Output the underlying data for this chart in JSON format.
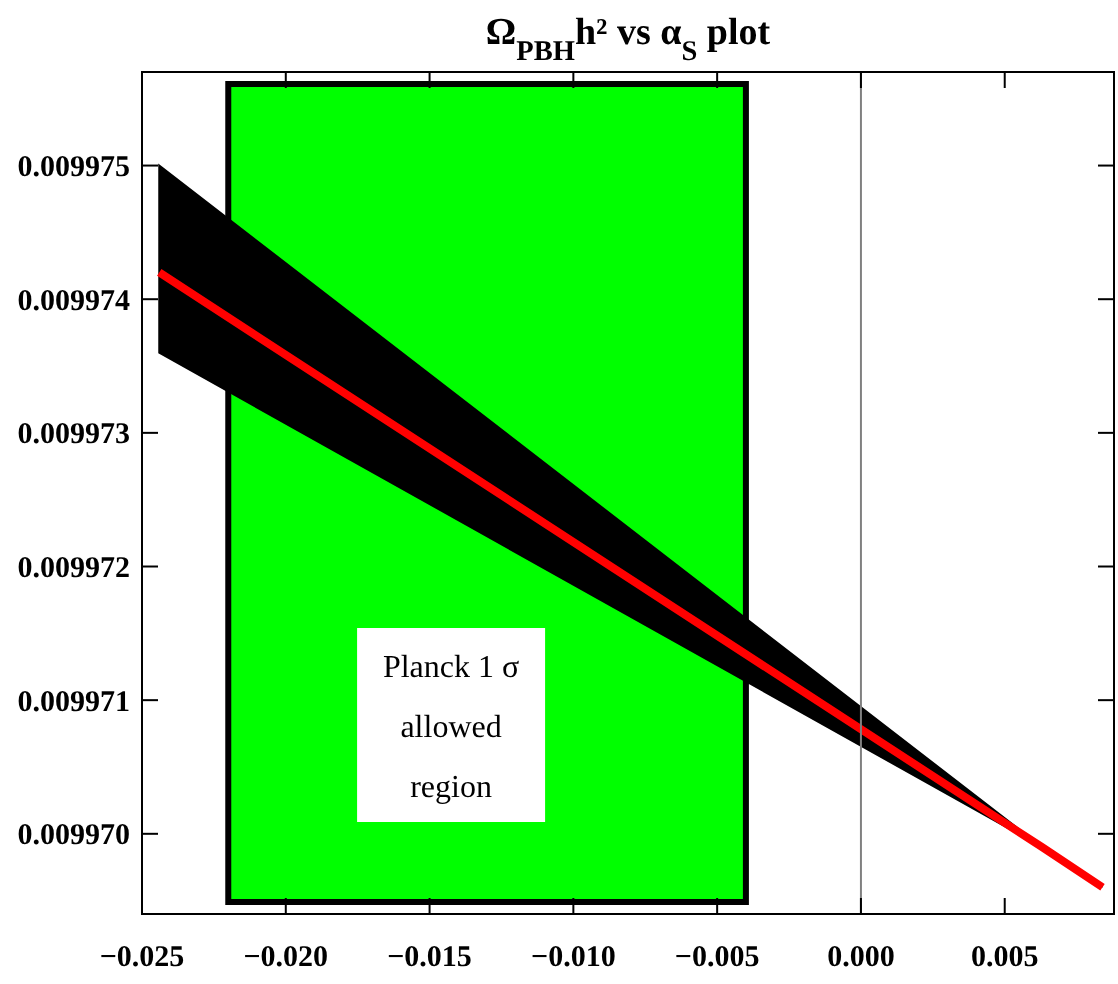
{
  "chart_data": {
    "type": "line",
    "title": "Ω$_{PBH}$h² vs α$_{S}$ plot",
    "x": [
      -0.0244,
      0.0063,
      0.0084
    ],
    "series": [
      {
        "color": "#ff0000",
        "values": [
          0.0099742,
          0.0099699,
          0.0099696
        ],
        "lower": [
          0.0099736,
          0.0099699,
          0.0099696
        ],
        "upper": [
          0.009975,
          0.0099699,
          0.0099696
        ]
      }
    ],
    "xlim": [
      -0.025,
      0.0088
    ],
    "ylim": [
      0.0099694,
      0.0099757
    ],
    "xticks": [
      {
        "value": -0.025,
        "label": "−0.025"
      },
      {
        "value": -0.02,
        "label": "−0.020"
      },
      {
        "value": -0.015,
        "label": "−0.015"
      },
      {
        "value": -0.01,
        "label": "−0.010"
      },
      {
        "value": -0.005,
        "label": "−0.005"
      },
      {
        "value": 0,
        "label": "0.000"
      },
      {
        "value": 0.005,
        "label": "0.005"
      }
    ],
    "yticks": [
      {
        "value": 0.00997,
        "label": "0.009970"
      },
      0.009971,
      0.009972,
      0.009973,
      0.009974,
      0.009975
    ],
    "bands": [
      {
        "axis": "x",
        "from": -0.022,
        "to": -0.004,
        "label": "Planck 1 σ allowed region",
        "color": "#00ff00"
      }
    ],
    "ref_lines": [
      {
        "axis": "x",
        "value": 0,
        "color": "#808080"
      }
    ],
    "marker": "none",
    "line_style": "solid"
  }
}
